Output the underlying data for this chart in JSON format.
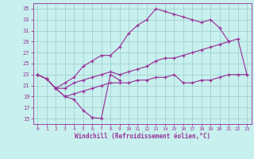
{
  "bg_color": "#c8f0ee",
  "line_color": "#993399",
  "grid_color": "#99cccc",
  "xlabel": "Windchill (Refroidissement éolien,°C)",
  "xlim": [
    -0.5,
    23.5
  ],
  "ylim": [
    14,
    36
  ],
  "yticks": [
    15,
    17,
    19,
    21,
    23,
    25,
    27,
    29,
    31,
    33,
    35
  ],
  "xticks": [
    0,
    1,
    2,
    3,
    4,
    5,
    6,
    7,
    8,
    9,
    10,
    11,
    12,
    13,
    14,
    15,
    16,
    17,
    18,
    19,
    20,
    21,
    22,
    23
  ],
  "curveA_x": [
    0,
    1,
    2,
    3,
    4,
    5,
    6,
    7,
    8,
    9,
    10,
    11,
    12,
    13,
    14,
    15,
    16,
    17,
    18,
    19,
    20,
    21
  ],
  "curveA_y": [
    23.0,
    22.2,
    20.5,
    21.5,
    22.5,
    24.5,
    25.5,
    26.5,
    26.5,
    28.0,
    30.5,
    32.0,
    33.0,
    35.0,
    34.5,
    34.0,
    33.5,
    33.0,
    32.5,
    33.0,
    31.5,
    29.0
  ],
  "curveB_x": [
    0,
    1,
    2,
    3,
    4,
    5,
    6,
    7,
    8,
    9,
    10,
    11,
    12,
    13,
    14,
    15,
    16,
    17,
    18,
    19,
    20,
    21,
    22,
    23
  ],
  "curveB_y": [
    23.0,
    22.2,
    20.5,
    20.5,
    21.5,
    22.0,
    22.5,
    23.0,
    23.5,
    23.0,
    23.5,
    24.0,
    24.5,
    25.5,
    26.0,
    26.0,
    26.5,
    27.0,
    27.5,
    28.0,
    28.5,
    29.0,
    29.5,
    23.0
  ],
  "curveC_x": [
    0,
    1,
    2,
    3,
    4,
    5,
    6,
    7,
    8,
    9
  ],
  "curveC_y": [
    23.0,
    22.2,
    20.5,
    19.0,
    18.5,
    16.5,
    15.2,
    15.0,
    23.0,
    22.0
  ],
  "curveD_x": [
    1,
    2,
    3,
    4,
    5,
    6,
    7,
    8,
    9,
    10,
    11,
    12,
    13,
    14,
    15,
    16,
    17,
    18,
    19,
    20,
    21,
    22,
    23
  ],
  "curveD_y": [
    22.2,
    20.5,
    19.0,
    19.5,
    20.0,
    20.5,
    21.0,
    21.5,
    21.5,
    21.5,
    22.0,
    22.0,
    22.5,
    22.5,
    23.0,
    21.5,
    21.5,
    22.0,
    22.0,
    22.5,
    23.0,
    23.0,
    23.0
  ]
}
